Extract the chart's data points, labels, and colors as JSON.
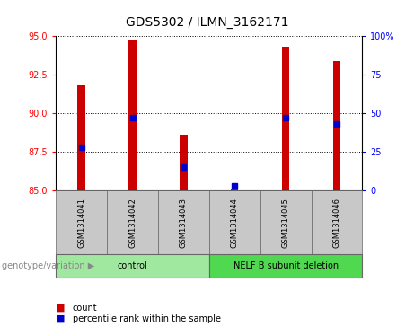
{
  "title": "GDS5302 / ILMN_3162171",
  "samples": [
    "GSM1314041",
    "GSM1314042",
    "GSM1314043",
    "GSM1314044",
    "GSM1314045",
    "GSM1314046"
  ],
  "count_values": [
    91.8,
    94.7,
    88.6,
    85.1,
    94.3,
    93.4
  ],
  "percentile_values": [
    28,
    47,
    15,
    3,
    47,
    43
  ],
  "ylim_left": [
    85,
    95
  ],
  "ylim_right": [
    0,
    100
  ],
  "yticks_left": [
    85,
    87.5,
    90,
    92.5,
    95
  ],
  "yticks_right": [
    0,
    25,
    50,
    75,
    100
  ],
  "bar_color": "#cc0000",
  "percentile_color": "#0000cc",
  "bar_bottom": 85,
  "groups": [
    {
      "label": "control",
      "indices": [
        0,
        1,
        2
      ],
      "color": "#a0e8a0"
    },
    {
      "label": "NELF B subunit deletion",
      "indices": [
        3,
        4,
        5
      ],
      "color": "#50d850"
    }
  ],
  "group_label_prefix": "genotype/variation",
  "xlabel_area_color": "#c8c8c8",
  "plot_bg_color": "#ffffff",
  "title_fontsize": 10,
  "tick_fontsize": 7,
  "sample_fontsize": 6,
  "group_fontsize": 7,
  "legend_fontsize": 7,
  "bar_width": 0.15
}
